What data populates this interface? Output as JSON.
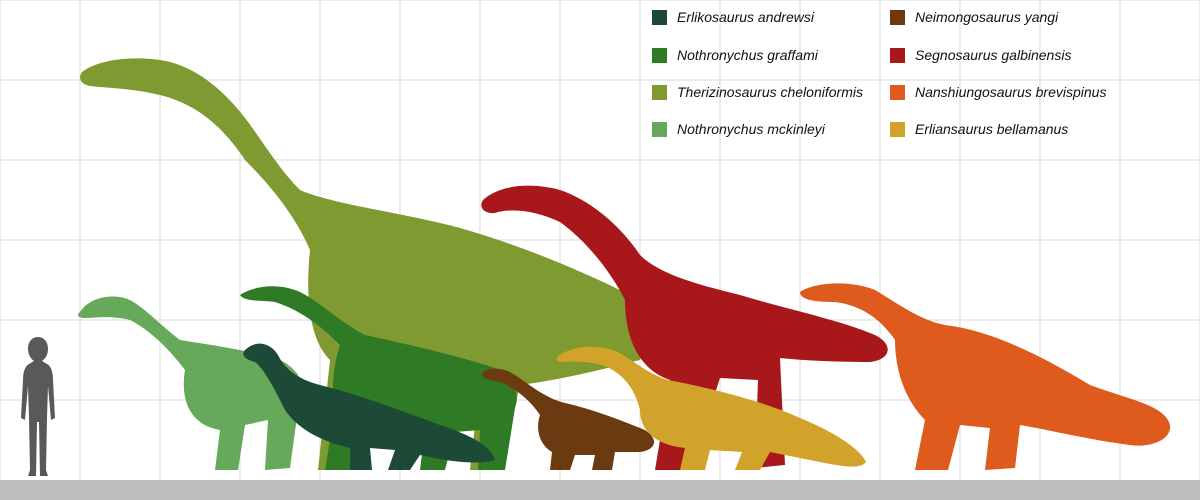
{
  "colors": {
    "background": "#ffffff",
    "grid": "#d9d9d9",
    "ground": "#bdbdbd",
    "human": "#595959"
  },
  "human_icon": "human-silhouette",
  "species": [
    {
      "name": "Erlikosaurus andrewsi",
      "color": "#1d4a36"
    },
    {
      "name": "Nothronychus graffami",
      "color": "#2f7a24"
    },
    {
      "name": "Therizinosaurus cheloniformis",
      "color": "#7f9a31"
    },
    {
      "name": "Nothronychus mckinleyi",
      "color": "#67a95a"
    },
    {
      "name": "Neimongosaurus yangi",
      "color": "#6b3a10"
    },
    {
      "name": "Segnosaurus galbinensis",
      "color": "#a8171a"
    },
    {
      "name": "Nanshiungosaurus brevispinus",
      "color": "#de5a1d"
    },
    {
      "name": "Erliansaurus bellamanus",
      "color": "#d2a32a"
    }
  ]
}
